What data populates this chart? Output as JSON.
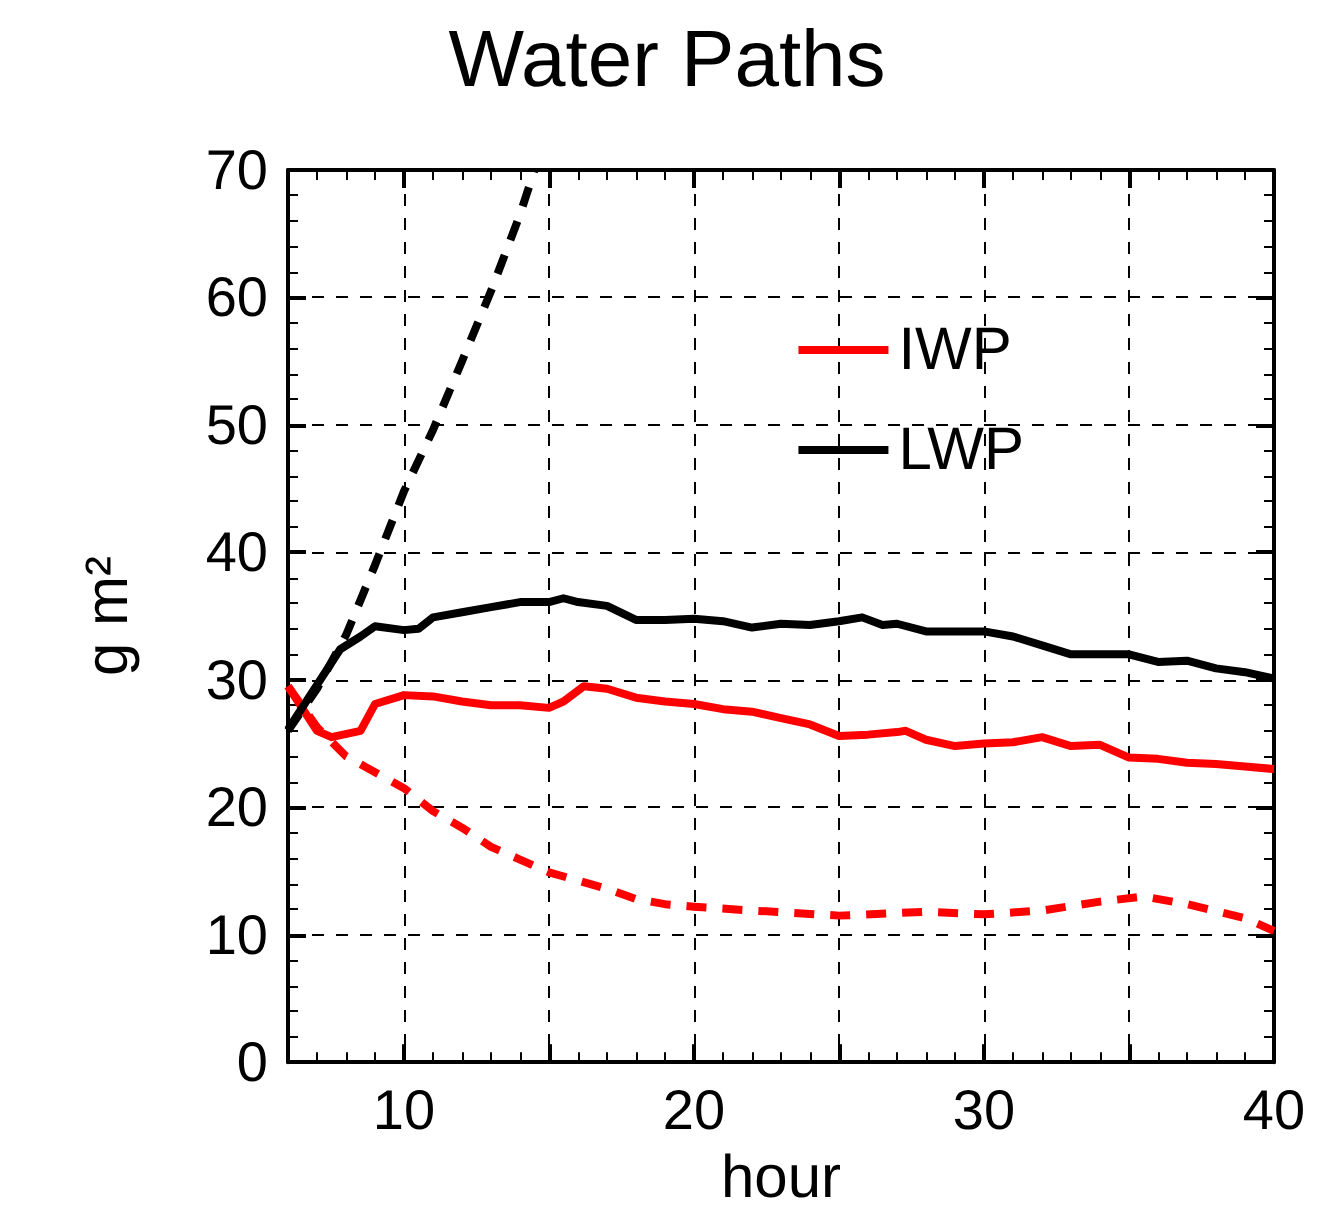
{
  "chart_data": {
    "type": "line",
    "title": "Water Paths",
    "xlabel": "hour",
    "ylabel": "g m²",
    "xlim": [
      6,
      40
    ],
    "xticks": [
      10,
      {
        "value": 15,
        "label": null
      },
      20,
      {
        "value": 25,
        "label": null
      },
      30,
      {
        "value": 35,
        "label": null
      },
      40
    ],
    "ylim": [
      0,
      70
    ],
    "yticks": [
      0,
      10,
      20,
      30,
      40,
      50,
      60,
      70
    ],
    "grid": true,
    "legend": "top right",
    "series": [
      {
        "name": "IWP",
        "color": "#ff0000",
        "line_style": "solid",
        "x": [
          6,
          7,
          7.5,
          8.5,
          9,
          10,
          11,
          12,
          13,
          14,
          15,
          15.5,
          16.2,
          17,
          18,
          19,
          20,
          21,
          22,
          23,
          24,
          25,
          26,
          27,
          27.3,
          28,
          29,
          30,
          31,
          32,
          33,
          34,
          35,
          36,
          37,
          38,
          39,
          40
        ],
        "values": [
          29.5,
          26.0,
          25.5,
          26.0,
          28.1,
          28.8,
          28.7,
          28.3,
          28.0,
          28.0,
          27.8,
          28.3,
          29.5,
          29.3,
          28.6,
          28.3,
          28.1,
          27.7,
          27.5,
          27.0,
          26.5,
          25.6,
          25.7,
          25.9,
          26.0,
          25.3,
          24.8,
          25.0,
          25.1,
          25.5,
          24.8,
          24.9,
          23.9,
          23.8,
          23.5,
          23.4,
          23.2,
          23.0
        ]
      },
      {
        "name": "LWP",
        "color": "#000000",
        "line_style": "solid",
        "x": [
          6,
          7,
          7.8,
          8.5,
          9,
          10,
          10.5,
          11,
          12,
          13,
          14,
          15,
          15.5,
          16,
          17,
          18,
          19,
          20,
          21,
          22,
          23,
          24,
          25,
          25.8,
          26.5,
          27,
          28,
          29,
          30,
          31,
          32,
          33,
          34,
          35,
          36,
          37,
          38,
          39,
          40
        ],
        "values": [
          26.1,
          29.6,
          32.4,
          33.4,
          34.2,
          33.9,
          34.0,
          34.9,
          35.3,
          35.7,
          36.1,
          36.1,
          36.4,
          36.1,
          35.8,
          34.7,
          34.7,
          34.8,
          34.6,
          34.1,
          34.4,
          34.3,
          34.6,
          34.9,
          34.3,
          34.4,
          33.8,
          33.8,
          33.8,
          33.4,
          32.7,
          32.0,
          32.0,
          32.0,
          31.4,
          31.5,
          30.9,
          30.6,
          30.1
        ]
      },
      {
        "color": "#ff0000",
        "line_style": "dashed",
        "x": [
          6,
          7,
          8,
          10,
          11,
          12,
          13,
          14,
          15,
          17,
          18,
          19,
          20,
          22,
          25,
          28,
          30,
          32,
          34,
          35.5,
          37,
          39,
          40
        ],
        "values": [
          29.5,
          26.3,
          24.0,
          21.5,
          19.7,
          18.4,
          16.9,
          15.9,
          14.9,
          13.6,
          12.8,
          12.4,
          12.2,
          11.9,
          11.5,
          11.8,
          11.6,
          11.9,
          12.6,
          13.0,
          12.4,
          11.3,
          10.3
        ]
      },
      {
        "color": "#000000",
        "line_style": "dashed",
        "x": [
          6,
          7,
          8,
          9,
          10,
          11,
          12,
          13,
          14,
          14.5
        ],
        "values": [
          26.0,
          29.3,
          33.5,
          39.0,
          44.8,
          49.6,
          55.0,
          60.5,
          66.5,
          70.0
        ]
      }
    ]
  }
}
